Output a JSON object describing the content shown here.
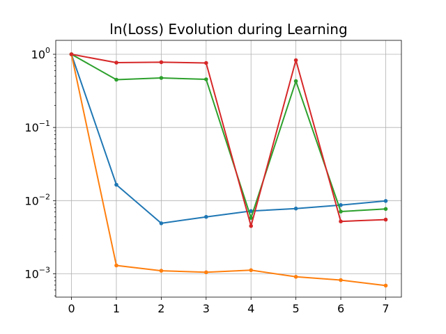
{
  "chart_data": {
    "type": "line",
    "title": "ln(Loss) Evolution during Learning",
    "xlabel": "",
    "ylabel": "",
    "yscale": "log",
    "grid": true,
    "x": [
      0,
      1,
      2,
      3,
      4,
      5,
      6,
      7
    ],
    "xlim": [
      -0.35,
      7.35
    ],
    "ylim": [
      0.00048,
      1.55
    ],
    "x_ticks": [
      0,
      1,
      2,
      3,
      4,
      5,
      6,
      7
    ],
    "y_ticks": [
      {
        "value": 1,
        "base": "10",
        "exp": "0"
      },
      {
        "value": 0.1,
        "base": "10",
        "exp": "−1"
      },
      {
        "value": 0.01,
        "base": "10",
        "exp": "−2"
      },
      {
        "value": 0.001,
        "base": "10",
        "exp": "−3"
      }
    ],
    "series": [
      {
        "color": "#1f77b4",
        "values": [
          1.0,
          0.0165,
          0.0049,
          0.006,
          0.0072,
          0.0078,
          0.0087,
          0.0099
        ]
      },
      {
        "color": "#ff7f0e",
        "values": [
          1.0,
          0.0013,
          0.0011,
          0.00105,
          0.00112,
          0.00091,
          0.00082,
          0.00069
        ]
      },
      {
        "color": "#2ca02c",
        "values": [
          1.0,
          0.45,
          0.475,
          0.455,
          0.0058,
          0.43,
          0.0071,
          0.0077
        ]
      },
      {
        "color": "#d62728",
        "values": [
          1.0,
          0.77,
          0.78,
          0.76,
          0.0045,
          0.83,
          0.0052,
          0.0055
        ]
      }
    ]
  }
}
